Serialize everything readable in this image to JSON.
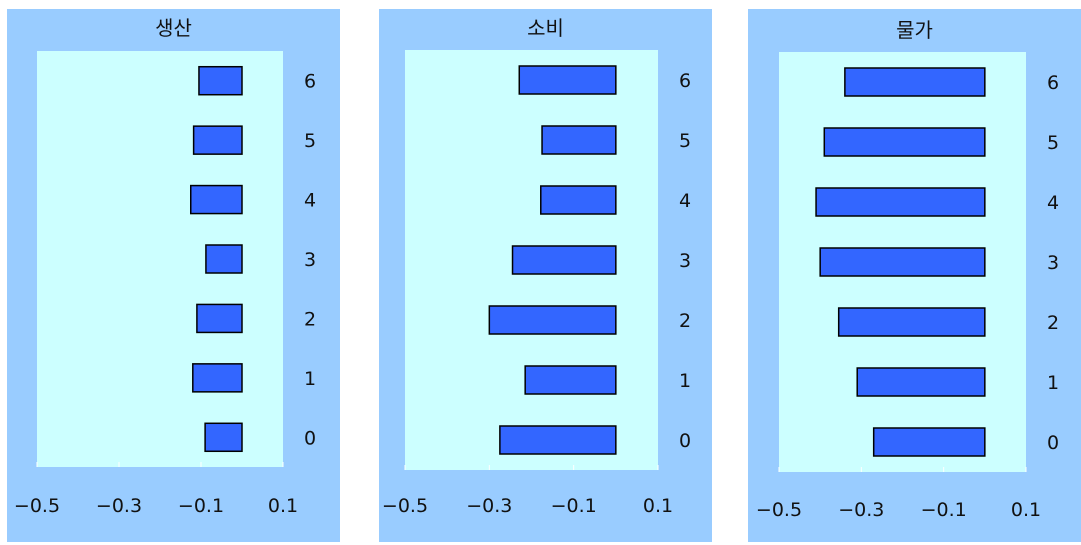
{
  "colors": {
    "panel_bg": "#99ccff",
    "plot_bg": "#ccffff",
    "bar_fill": "#3366ff",
    "bar_stroke": "#000000"
  },
  "chart_data": [
    {
      "type": "bar",
      "orientation": "horizontal",
      "title": "생산",
      "categories": [
        "0",
        "1",
        "2",
        "3",
        "4",
        "5",
        "6"
      ],
      "values": [
        -0.09,
        -0.12,
        -0.11,
        -0.088,
        -0.125,
        -0.118,
        -0.105
      ],
      "xlim": [
        -0.5,
        0.1
      ],
      "xticks": [
        "−0.5",
        "−0.3",
        "−0.1",
        "0.1"
      ],
      "xtick_values": [
        -0.5,
        -0.3,
        -0.1,
        0.1
      ]
    },
    {
      "type": "bar",
      "orientation": "horizontal",
      "title": "소비",
      "categories": [
        "0",
        "1",
        "2",
        "3",
        "4",
        "5",
        "6"
      ],
      "values": [
        -0.275,
        -0.215,
        -0.3,
        -0.245,
        -0.178,
        -0.175,
        -0.229
      ],
      "xlim": [
        -0.5,
        0.1
      ],
      "xticks": [
        "−0.5",
        "−0.3",
        "−0.1",
        "0.1"
      ],
      "xtick_values": [
        -0.5,
        -0.3,
        -0.1,
        0.1
      ]
    },
    {
      "type": "bar",
      "orientation": "horizontal",
      "title": "물가",
      "categories": [
        "0",
        "1",
        "2",
        "3",
        "4",
        "5",
        "6"
      ],
      "values": [
        -0.27,
        -0.31,
        -0.355,
        -0.4,
        -0.41,
        -0.39,
        -0.34
      ],
      "xlim": [
        -0.5,
        0.1
      ],
      "xticks": [
        "−0.5",
        "−0.3",
        "−0.1",
        "0.1"
      ],
      "xtick_values": [
        -0.5,
        -0.3,
        -0.1,
        0.1
      ]
    }
  ]
}
